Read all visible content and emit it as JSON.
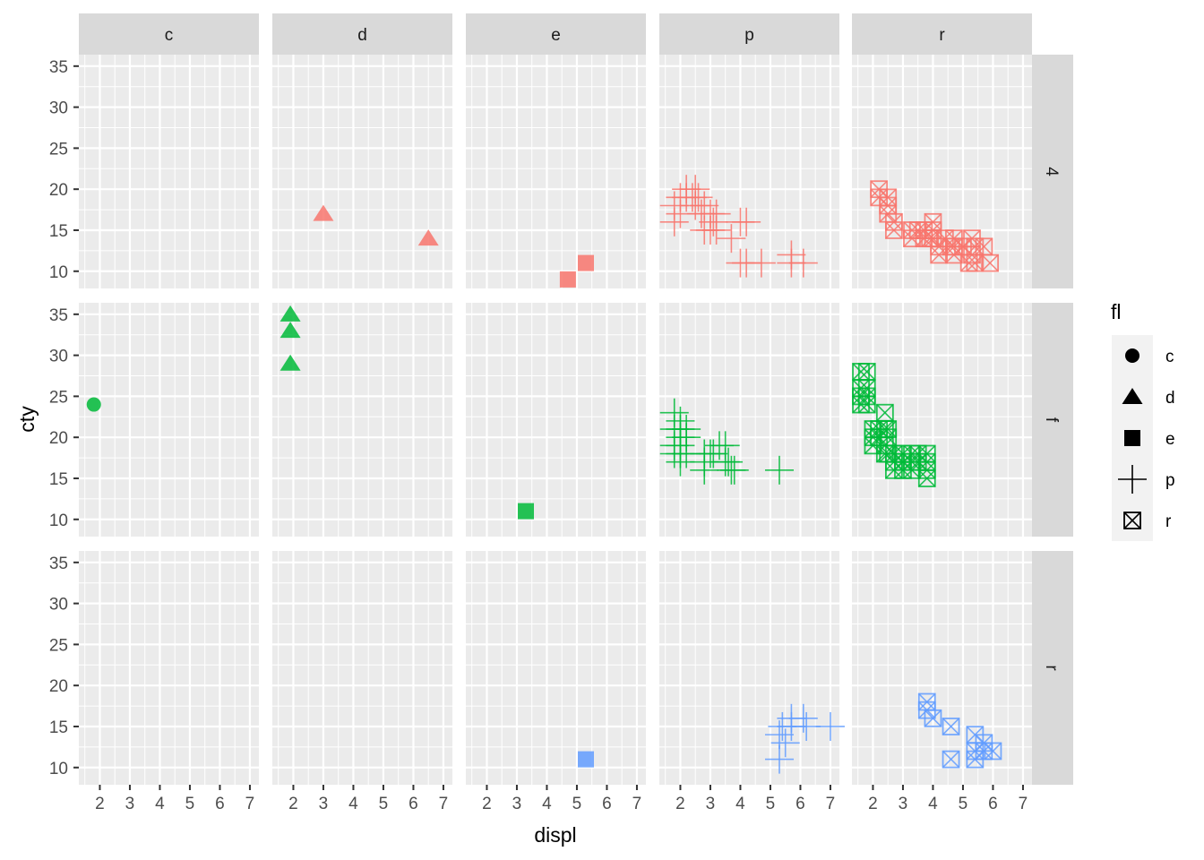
{
  "chart_data": {
    "type": "scatter",
    "title": "",
    "xlabel": "displ",
    "ylabel": "cty",
    "xlim": [
      1.3,
      7.3
    ],
    "ylim": [
      7.9,
      36.4
    ],
    "x_ticks": [
      2,
      3,
      4,
      5,
      6,
      7
    ],
    "y_ticks": [
      10,
      15,
      20,
      25,
      30,
      35
    ],
    "grid": true,
    "facet_cols": [
      "c",
      "d",
      "e",
      "p",
      "r"
    ],
    "facet_rows": [
      "4",
      "f",
      "r"
    ],
    "row_colors": {
      "4": "#F8766D",
      "f": "#00BA38",
      "r": "#619CFF"
    },
    "legend": {
      "title": "fl",
      "position": "right",
      "entries": [
        {
          "label": "c",
          "shape": "circle"
        },
        {
          "label": "d",
          "shape": "triangle"
        },
        {
          "label": "e",
          "shape": "square"
        },
        {
          "label": "p",
          "shape": "plus"
        },
        {
          "label": "r",
          "shape": "boxed-x"
        }
      ]
    },
    "points": [
      {
        "col": "d",
        "row": "4",
        "x": 3.0,
        "y": 17
      },
      {
        "col": "d",
        "row": "4",
        "x": 6.5,
        "y": 14
      },
      {
        "col": "e",
        "row": "4",
        "x": 4.7,
        "y": 9
      },
      {
        "col": "e",
        "row": "4",
        "x": 5.3,
        "y": 11
      },
      {
        "col": "p",
        "row": "4",
        "x": 1.8,
        "y": 18
      },
      {
        "col": "p",
        "row": "4",
        "x": 1.8,
        "y": 16
      },
      {
        "col": "p",
        "row": "4",
        "x": 2.0,
        "y": 19
      },
      {
        "col": "p",
        "row": "4",
        "x": 2.0,
        "y": 17
      },
      {
        "col": "p",
        "row": "4",
        "x": 2.2,
        "y": 20
      },
      {
        "col": "p",
        "row": "4",
        "x": 2.2,
        "y": 19
      },
      {
        "col": "p",
        "row": "4",
        "x": 2.4,
        "y": 19
      },
      {
        "col": "p",
        "row": "4",
        "x": 2.5,
        "y": 20
      },
      {
        "col": "p",
        "row": "4",
        "x": 2.5,
        "y": 18
      },
      {
        "col": "p",
        "row": "4",
        "x": 2.6,
        "y": 19
      },
      {
        "col": "p",
        "row": "4",
        "x": 2.7,
        "y": 17
      },
      {
        "col": "p",
        "row": "4",
        "x": 2.8,
        "y": 18
      },
      {
        "col": "p",
        "row": "4",
        "x": 2.8,
        "y": 15
      },
      {
        "col": "p",
        "row": "4",
        "x": 3.0,
        "y": 17
      },
      {
        "col": "p",
        "row": "4",
        "x": 3.0,
        "y": 15
      },
      {
        "col": "p",
        "row": "4",
        "x": 3.1,
        "y": 16
      },
      {
        "col": "p",
        "row": "4",
        "x": 3.2,
        "y": 17
      },
      {
        "col": "p",
        "row": "4",
        "x": 3.2,
        "y": 15
      },
      {
        "col": "p",
        "row": "4",
        "x": 4.0,
        "y": 16
      },
      {
        "col": "p",
        "row": "4",
        "x": 4.2,
        "y": 16
      },
      {
        "col": "p",
        "row": "4",
        "x": 3.7,
        "y": 14
      },
      {
        "col": "p",
        "row": "4",
        "x": 4.0,
        "y": 11
      },
      {
        "col": "p",
        "row": "4",
        "x": 4.2,
        "y": 11
      },
      {
        "col": "p",
        "row": "4",
        "x": 4.7,
        "y": 11
      },
      {
        "col": "p",
        "row": "4",
        "x": 5.7,
        "y": 12
      },
      {
        "col": "p",
        "row": "4",
        "x": 5.7,
        "y": 11
      },
      {
        "col": "p",
        "row": "4",
        "x": 6.1,
        "y": 11
      },
      {
        "col": "r",
        "row": "4",
        "x": 2.2,
        "y": 20
      },
      {
        "col": "r",
        "row": "4",
        "x": 2.2,
        "y": 19
      },
      {
        "col": "r",
        "row": "4",
        "x": 2.5,
        "y": 19
      },
      {
        "col": "r",
        "row": "4",
        "x": 2.5,
        "y": 18
      },
      {
        "col": "r",
        "row": "4",
        "x": 2.5,
        "y": 17
      },
      {
        "col": "r",
        "row": "4",
        "x": 2.7,
        "y": 16
      },
      {
        "col": "r",
        "row": "4",
        "x": 2.7,
        "y": 15
      },
      {
        "col": "r",
        "row": "4",
        "x": 3.3,
        "y": 15
      },
      {
        "col": "r",
        "row": "4",
        "x": 3.3,
        "y": 14
      },
      {
        "col": "r",
        "row": "4",
        "x": 3.5,
        "y": 15
      },
      {
        "col": "r",
        "row": "4",
        "x": 3.7,
        "y": 15
      },
      {
        "col": "r",
        "row": "4",
        "x": 3.7,
        "y": 14
      },
      {
        "col": "r",
        "row": "4",
        "x": 3.9,
        "y": 14
      },
      {
        "col": "r",
        "row": "4",
        "x": 4.0,
        "y": 16
      },
      {
        "col": "r",
        "row": "4",
        "x": 4.0,
        "y": 15
      },
      {
        "col": "r",
        "row": "4",
        "x": 4.0,
        "y": 14
      },
      {
        "col": "r",
        "row": "4",
        "x": 4.2,
        "y": 13
      },
      {
        "col": "r",
        "row": "4",
        "x": 4.2,
        "y": 12
      },
      {
        "col": "r",
        "row": "4",
        "x": 4.4,
        "y": 14
      },
      {
        "col": "r",
        "row": "4",
        "x": 4.6,
        "y": 13
      },
      {
        "col": "r",
        "row": "4",
        "x": 4.7,
        "y": 14
      },
      {
        "col": "r",
        "row": "4",
        "x": 4.7,
        "y": 13
      },
      {
        "col": "r",
        "row": "4",
        "x": 4.7,
        "y": 12
      },
      {
        "col": "r",
        "row": "4",
        "x": 5.0,
        "y": 13
      },
      {
        "col": "r",
        "row": "4",
        "x": 5.2,
        "y": 11
      },
      {
        "col": "r",
        "row": "4",
        "x": 5.3,
        "y": 14
      },
      {
        "col": "r",
        "row": "4",
        "x": 5.3,
        "y": 12
      },
      {
        "col": "r",
        "row": "4",
        "x": 5.4,
        "y": 13
      },
      {
        "col": "r",
        "row": "4",
        "x": 5.4,
        "y": 11
      },
      {
        "col": "r",
        "row": "4",
        "x": 5.7,
        "y": 13
      },
      {
        "col": "r",
        "row": "4",
        "x": 5.9,
        "y": 11
      },
      {
        "col": "c",
        "row": "f",
        "x": 1.8,
        "y": 24
      },
      {
        "col": "d",
        "row": "f",
        "x": 1.9,
        "y": 35
      },
      {
        "col": "d",
        "row": "f",
        "x": 1.9,
        "y": 33
      },
      {
        "col": "d",
        "row": "f",
        "x": 1.9,
        "y": 29
      },
      {
        "col": "e",
        "row": "f",
        "x": 3.3,
        "y": 11
      },
      {
        "col": "p",
        "row": "f",
        "x": 1.8,
        "y": 23
      },
      {
        "col": "p",
        "row": "f",
        "x": 1.8,
        "y": 21
      },
      {
        "col": "p",
        "row": "f",
        "x": 1.8,
        "y": 19
      },
      {
        "col": "p",
        "row": "f",
        "x": 1.8,
        "y": 18
      },
      {
        "col": "p",
        "row": "f",
        "x": 2.0,
        "y": 22
      },
      {
        "col": "p",
        "row": "f",
        "x": 2.0,
        "y": 21
      },
      {
        "col": "p",
        "row": "f",
        "x": 2.0,
        "y": 20
      },
      {
        "col": "p",
        "row": "f",
        "x": 2.0,
        "y": 19
      },
      {
        "col": "p",
        "row": "f",
        "x": 2.0,
        "y": 18
      },
      {
        "col": "p",
        "row": "f",
        "x": 2.0,
        "y": 17
      },
      {
        "col": "p",
        "row": "f",
        "x": 2.2,
        "y": 21
      },
      {
        "col": "p",
        "row": "f",
        "x": 2.2,
        "y": 20
      },
      {
        "col": "p",
        "row": "f",
        "x": 2.2,
        "y": 18
      },
      {
        "col": "p",
        "row": "f",
        "x": 2.8,
        "y": 18
      },
      {
        "col": "p",
        "row": "f",
        "x": 2.8,
        "y": 17
      },
      {
        "col": "p",
        "row": "f",
        "x": 2.8,
        "y": 16
      },
      {
        "col": "p",
        "row": "f",
        "x": 3.0,
        "y": 18
      },
      {
        "col": "p",
        "row": "f",
        "x": 3.1,
        "y": 18
      },
      {
        "col": "p",
        "row": "f",
        "x": 3.3,
        "y": 19
      },
      {
        "col": "p",
        "row": "f",
        "x": 3.5,
        "y": 19
      },
      {
        "col": "p",
        "row": "f",
        "x": 3.5,
        "y": 17
      },
      {
        "col": "p",
        "row": "f",
        "x": 3.6,
        "y": 17
      },
      {
        "col": "p",
        "row": "f",
        "x": 3.7,
        "y": 16
      },
      {
        "col": "p",
        "row": "f",
        "x": 3.8,
        "y": 16
      },
      {
        "col": "p",
        "row": "f",
        "x": 5.3,
        "y": 16
      },
      {
        "col": "r",
        "row": "f",
        "x": 1.6,
        "y": 28
      },
      {
        "col": "r",
        "row": "f",
        "x": 1.6,
        "y": 26
      },
      {
        "col": "r",
        "row": "f",
        "x": 1.6,
        "y": 25
      },
      {
        "col": "r",
        "row": "f",
        "x": 1.6,
        "y": 24
      },
      {
        "col": "r",
        "row": "f",
        "x": 1.8,
        "y": 28
      },
      {
        "col": "r",
        "row": "f",
        "x": 1.8,
        "y": 26
      },
      {
        "col": "r",
        "row": "f",
        "x": 1.8,
        "y": 25
      },
      {
        "col": "r",
        "row": "f",
        "x": 1.8,
        "y": 24
      },
      {
        "col": "r",
        "row": "f",
        "x": 2.0,
        "y": 21
      },
      {
        "col": "r",
        "row": "f",
        "x": 2.0,
        "y": 20
      },
      {
        "col": "r",
        "row": "f",
        "x": 2.0,
        "y": 19
      },
      {
        "col": "r",
        "row": "f",
        "x": 2.2,
        "y": 21
      },
      {
        "col": "r",
        "row": "f",
        "x": 2.2,
        "y": 20
      },
      {
        "col": "r",
        "row": "f",
        "x": 2.4,
        "y": 23
      },
      {
        "col": "r",
        "row": "f",
        "x": 2.4,
        "y": 21
      },
      {
        "col": "r",
        "row": "f",
        "x": 2.4,
        "y": 19
      },
      {
        "col": "r",
        "row": "f",
        "x": 2.4,
        "y": 18
      },
      {
        "col": "r",
        "row": "f",
        "x": 2.5,
        "y": 21
      },
      {
        "col": "r",
        "row": "f",
        "x": 2.5,
        "y": 20
      },
      {
        "col": "r",
        "row": "f",
        "x": 2.5,
        "y": 18
      },
      {
        "col": "r",
        "row": "f",
        "x": 2.7,
        "y": 18
      },
      {
        "col": "r",
        "row": "f",
        "x": 2.7,
        "y": 17
      },
      {
        "col": "r",
        "row": "f",
        "x": 2.7,
        "y": 16
      },
      {
        "col": "r",
        "row": "f",
        "x": 3.0,
        "y": 18
      },
      {
        "col": "r",
        "row": "f",
        "x": 3.0,
        "y": 17
      },
      {
        "col": "r",
        "row": "f",
        "x": 3.0,
        "y": 16
      },
      {
        "col": "r",
        "row": "f",
        "x": 3.3,
        "y": 18
      },
      {
        "col": "r",
        "row": "f",
        "x": 3.3,
        "y": 17
      },
      {
        "col": "r",
        "row": "f",
        "x": 3.3,
        "y": 16
      },
      {
        "col": "r",
        "row": "f",
        "x": 3.5,
        "y": 18
      },
      {
        "col": "r",
        "row": "f",
        "x": 3.5,
        "y": 17
      },
      {
        "col": "r",
        "row": "f",
        "x": 3.8,
        "y": 18
      },
      {
        "col": "r",
        "row": "f",
        "x": 3.8,
        "y": 17
      },
      {
        "col": "r",
        "row": "f",
        "x": 3.8,
        "y": 16
      },
      {
        "col": "r",
        "row": "f",
        "x": 3.8,
        "y": 15
      },
      {
        "col": "e",
        "row": "r",
        "x": 5.3,
        "y": 11
      },
      {
        "col": "p",
        "row": "r",
        "x": 5.3,
        "y": 14
      },
      {
        "col": "p",
        "row": "r",
        "x": 5.3,
        "y": 11
      },
      {
        "col": "p",
        "row": "r",
        "x": 5.4,
        "y": 15
      },
      {
        "col": "p",
        "row": "r",
        "x": 5.5,
        "y": 13
      },
      {
        "col": "p",
        "row": "r",
        "x": 5.7,
        "y": 16
      },
      {
        "col": "p",
        "row": "r",
        "x": 5.7,
        "y": 15
      },
      {
        "col": "p",
        "row": "r",
        "x": 6.1,
        "y": 16
      },
      {
        "col": "p",
        "row": "r",
        "x": 6.2,
        "y": 15
      },
      {
        "col": "p",
        "row": "r",
        "x": 7.0,
        "y": 15
      },
      {
        "col": "r",
        "row": "r",
        "x": 3.8,
        "y": 18
      },
      {
        "col": "r",
        "row": "r",
        "x": 3.8,
        "y": 17
      },
      {
        "col": "r",
        "row": "r",
        "x": 4.0,
        "y": 16
      },
      {
        "col": "r",
        "row": "r",
        "x": 4.6,
        "y": 15
      },
      {
        "col": "r",
        "row": "r",
        "x": 4.6,
        "y": 11
      },
      {
        "col": "r",
        "row": "r",
        "x": 5.4,
        "y": 14
      },
      {
        "col": "r",
        "row": "r",
        "x": 5.4,
        "y": 12
      },
      {
        "col": "r",
        "row": "r",
        "x": 5.4,
        "y": 11
      },
      {
        "col": "r",
        "row": "r",
        "x": 5.7,
        "y": 13
      },
      {
        "col": "r",
        "row": "r",
        "x": 5.7,
        "y": 12
      },
      {
        "col": "r",
        "row": "r",
        "x": 6.0,
        "y": 12
      }
    ]
  }
}
